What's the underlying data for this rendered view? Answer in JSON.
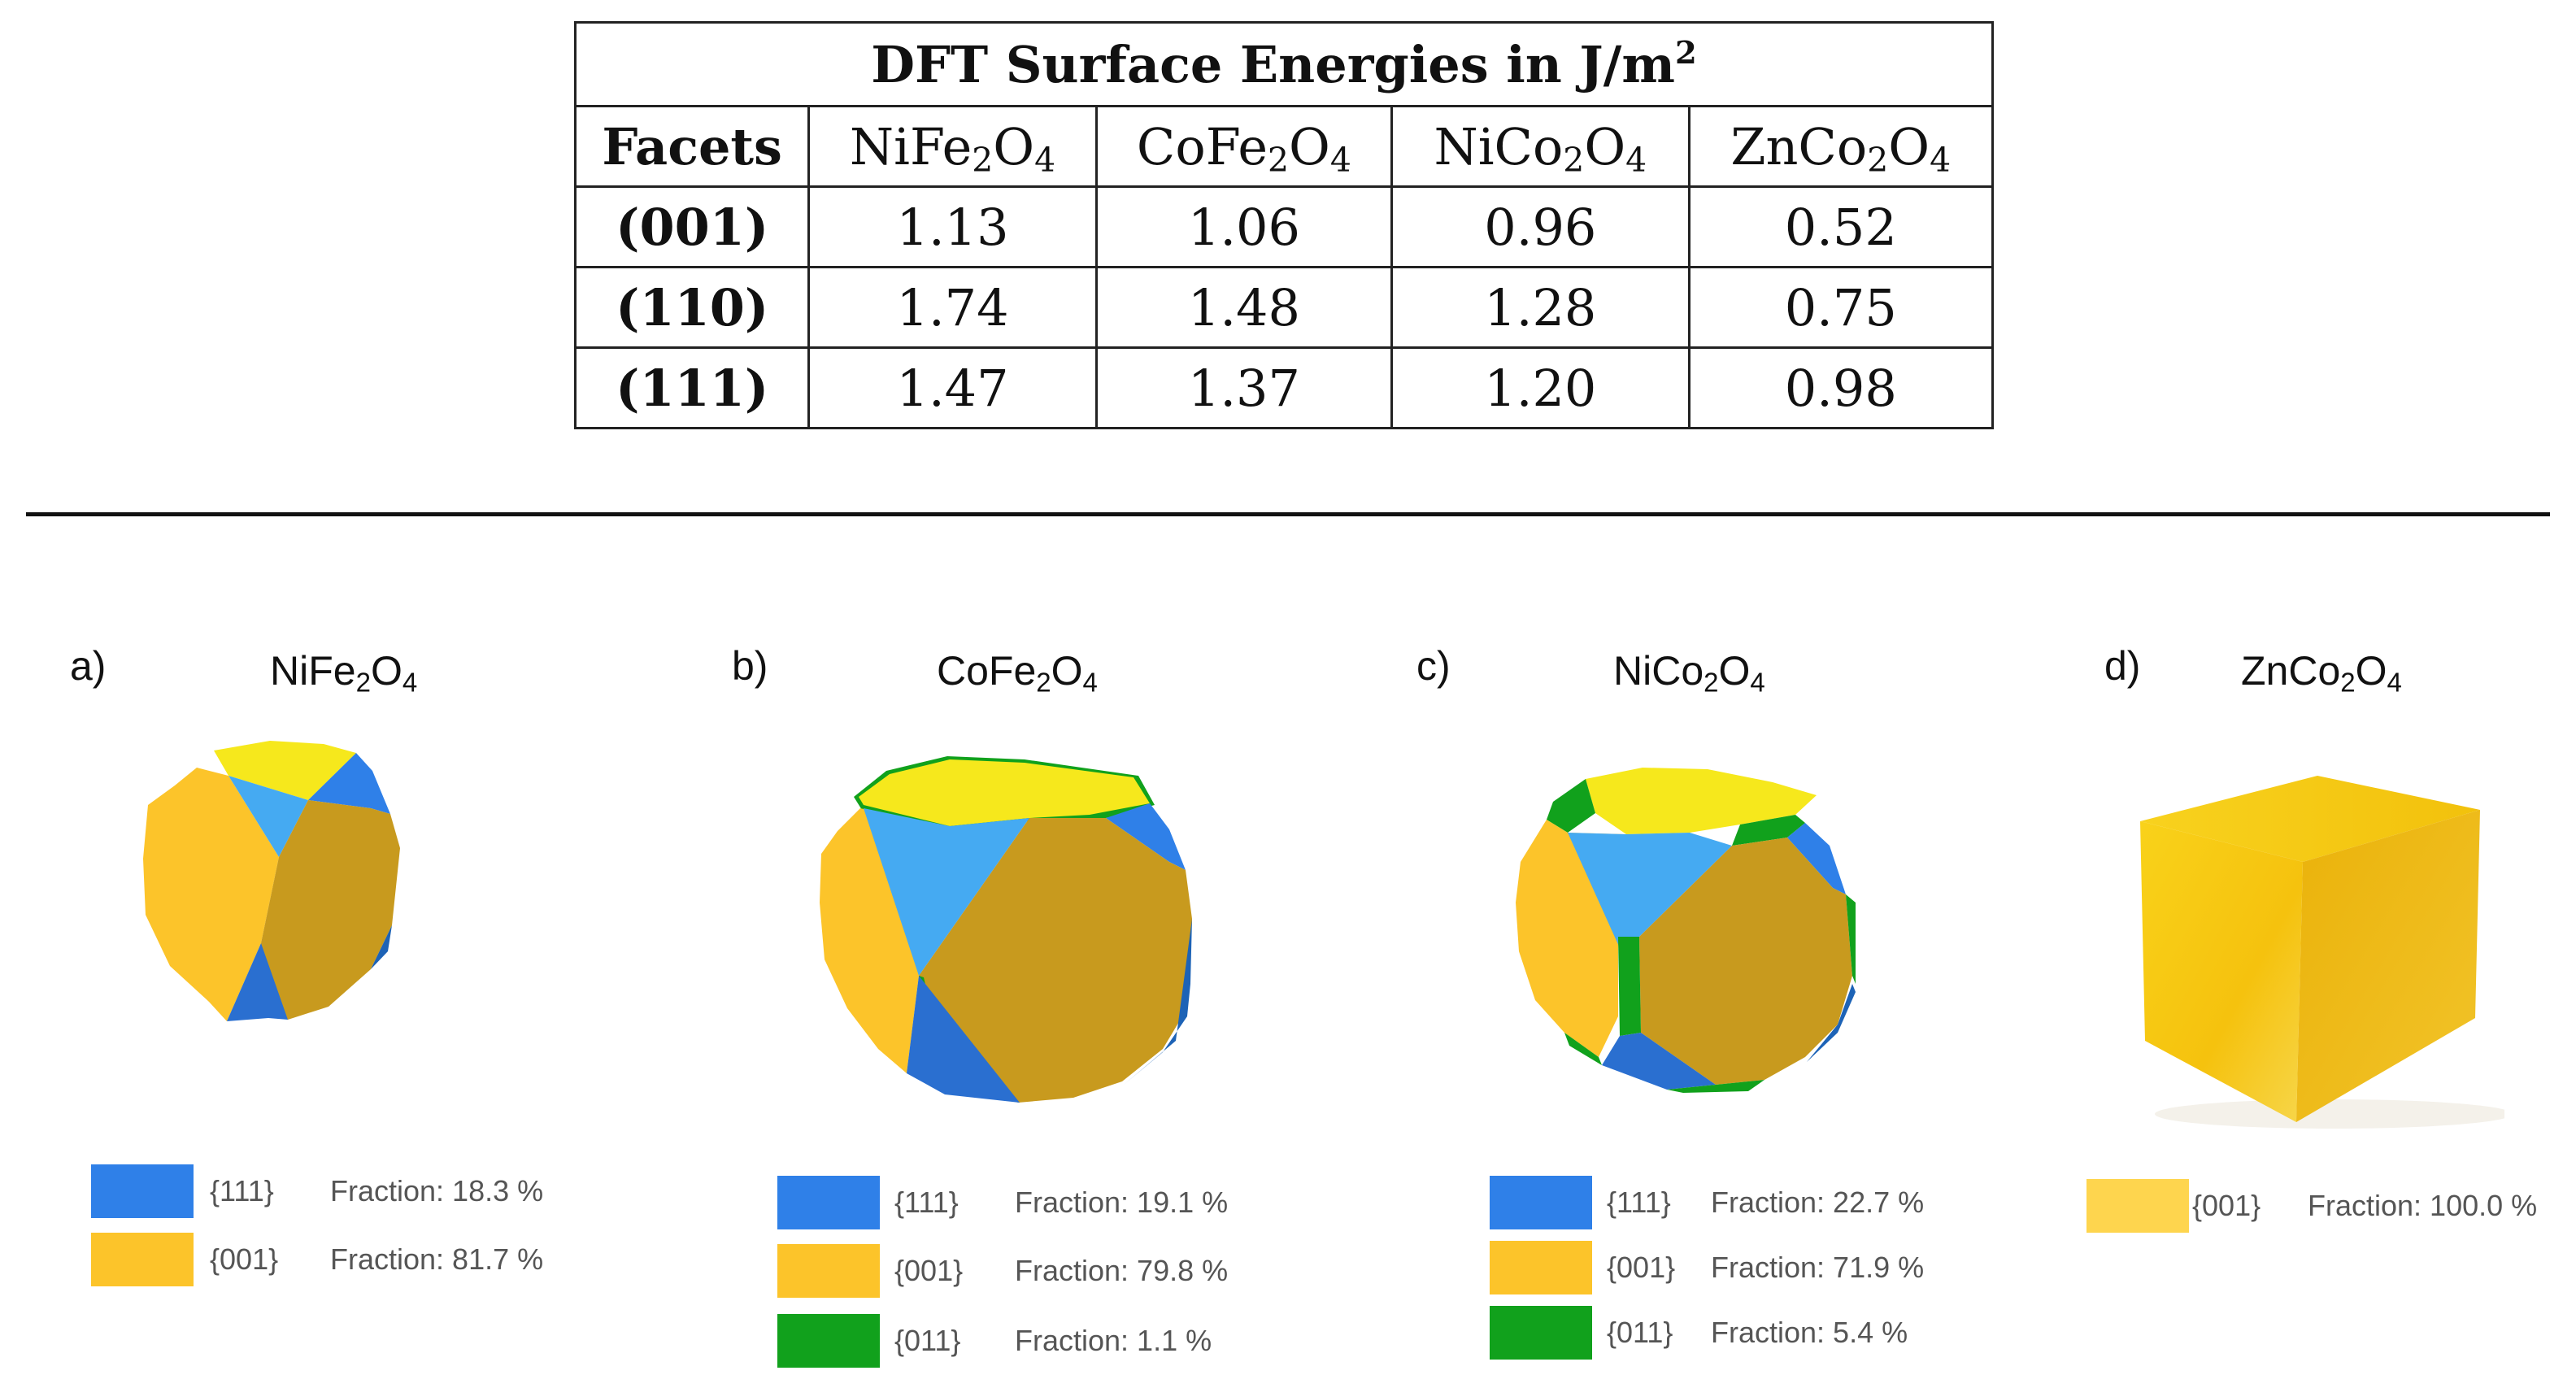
{
  "table": {
    "title": "DFT Surface Energies in J/m",
    "title_sup": "2",
    "header": {
      "facets": "Facets",
      "materials": [
        {
          "a": "NiFe",
          "s1": "2",
          "b": "O",
          "s2": "4"
        },
        {
          "a": "CoFe",
          "s1": "2",
          "b": "O",
          "s2": "4"
        },
        {
          "a": "NiCo",
          "s1": "2",
          "b": "O",
          "s2": "4"
        },
        {
          "a": "ZnCo",
          "s1": "2",
          "b": "O",
          "s2": "4"
        }
      ]
    },
    "rows": [
      {
        "facet": "(001)",
        "values": [
          "1.13",
          "1.06",
          "0.96",
          "0.52"
        ]
      },
      {
        "facet": "(110)",
        "values": [
          "1.74",
          "1.48",
          "1.28",
          "0.75"
        ]
      },
      {
        "facet": "(111)",
        "values": [
          "1.47",
          "1.37",
          "1.20",
          "0.98"
        ]
      }
    ]
  },
  "colors": {
    "f111": "#2f80e8",
    "f001": "#fcc42a",
    "f011": "#11a11c",
    "top_yellow": "#f6e81c",
    "front_gold": "#c89a1e",
    "light_blue": "#45aaf2",
    "dark_blue": "#1d63b6"
  },
  "panels": [
    {
      "letter": "a)",
      "name": "NiFe",
      "s1": "2",
      "mid": "O",
      "s2": "4",
      "legend": [
        {
          "facet": "{111}",
          "fraction": "Fraction: 18.3 %",
          "color": "#2f80e8"
        },
        {
          "facet": "{001}",
          "fraction": "Fraction: 81.7 %",
          "color": "#fcc42a"
        }
      ]
    },
    {
      "letter": "b)",
      "name": "CoFe",
      "s1": "2",
      "mid": "O",
      "s2": "4",
      "legend": [
        {
          "facet": "{111}",
          "fraction": "Fraction: 19.1 %",
          "color": "#2f80e8"
        },
        {
          "facet": "{001}",
          "fraction": "Fraction: 79.8 %",
          "color": "#fcc42a"
        },
        {
          "facet": "{011}",
          "fraction": "Fraction: 1.1 %",
          "color": "#11a11c"
        }
      ]
    },
    {
      "letter": "c)",
      "name": "NiCo",
      "s1": "2",
      "mid": "O",
      "s2": "4",
      "legend": [
        {
          "facet": "{111}",
          "fraction": "Fraction: 22.7 %",
          "color": "#2f80e8"
        },
        {
          "facet": "{001}",
          "fraction": "Fraction: 71.9 %",
          "color": "#fcc42a"
        },
        {
          "facet": "{011}",
          "fraction": "Fraction: 5.4 %",
          "color": "#11a11c"
        }
      ]
    },
    {
      "letter": "d)",
      "name": "ZnCo",
      "s1": "2",
      "mid": "O",
      "s2": "4",
      "legend": [
        {
          "facet": "{001}",
          "fraction": "Fraction: 100.0 %",
          "color": "#fed54e"
        }
      ]
    }
  ]
}
